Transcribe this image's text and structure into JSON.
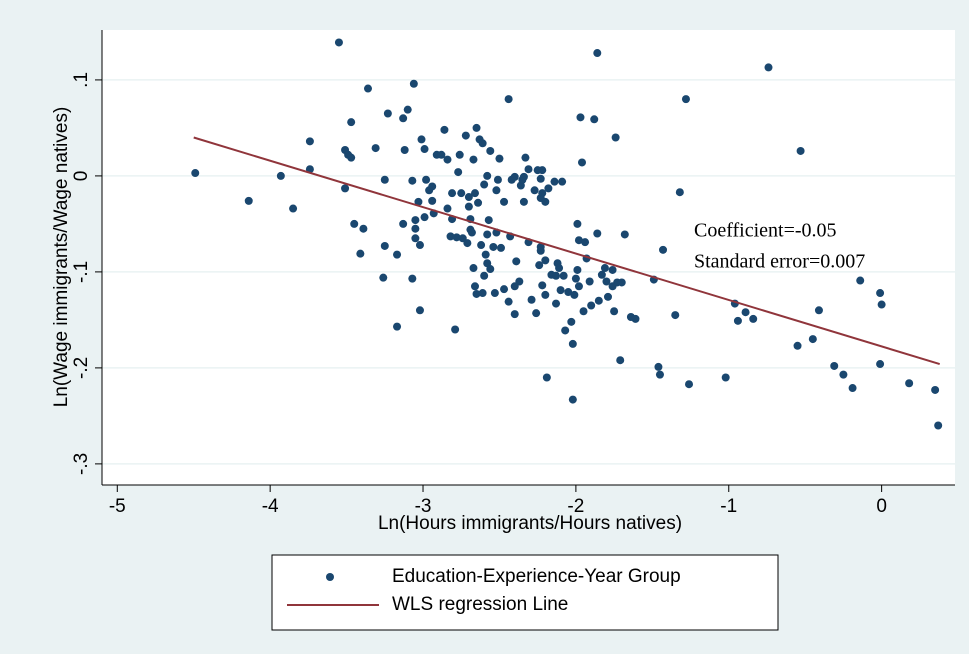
{
  "chart_data": {
    "type": "scatter",
    "xlabel": "Ln(Hours immigrants/Hours natives)",
    "ylabel": "Ln(Wage immigrants/Wage natives)",
    "xlim": [
      -5.1,
      0.48
    ],
    "ylim": [
      -0.322,
      0.152
    ],
    "xticks": [
      -5,
      -4,
      -3,
      -2,
      -1,
      0
    ],
    "yticks": [
      {
        "value": 0.1,
        "label": ".1"
      },
      0,
      {
        "value": -0.1,
        "label": "-.1"
      },
      {
        "value": -0.2,
        "label": "-.2"
      },
      {
        "value": -0.3,
        "label": "-.3"
      }
    ],
    "grid": true,
    "annotations": [
      "Coefficient=-0.05",
      "Standard error=0.007"
    ],
    "series": [
      {
        "name": "Education-Experience-Year Group",
        "style": "markers",
        "color": "#1a476f",
        "x": [
          -4.49,
          -4.14,
          -3.93,
          -3.85,
          -3.74,
          -3.74,
          -3.55,
          -3.51,
          -3.49,
          -3.47,
          -3.47,
          -3.51,
          -3.45,
          -3.41,
          -3.39,
          -3.36,
          -3.31,
          -3.26,
          -3.25,
          -3.25,
          -3.23,
          -3.17,
          -3.17,
          -3.13,
          -3.12,
          -3.13,
          -3.1,
          -3.07,
          -3.07,
          -3.06,
          -3.05,
          -3.05,
          -3.05,
          -3.03,
          -3.02,
          -3.02,
          -3.01,
          -2.99,
          -2.99,
          -2.98,
          -2.96,
          -2.94,
          -2.94,
          -2.93,
          -2.91,
          -2.88,
          -2.86,
          -2.84,
          -2.84,
          -2.82,
          -2.81,
          -2.81,
          -2.79,
          -2.78,
          -2.77,
          -2.76,
          -2.75,
          -2.74,
          -2.72,
          -2.71,
          -2.7,
          -2.7,
          -2.69,
          -2.69,
          -2.68,
          -2.67,
          -2.67,
          -2.66,
          -2.66,
          -2.65,
          -2.65,
          -2.64,
          -2.63,
          -2.62,
          -2.61,
          -2.61,
          -2.6,
          -2.6,
          -2.59,
          -2.58,
          -2.58,
          -2.58,
          -2.57,
          -2.56,
          -2.56,
          -2.54,
          -2.53,
          -2.52,
          -2.52,
          -2.51,
          -2.5,
          -2.49,
          -2.47,
          -2.47,
          -2.44,
          -2.44,
          -2.43,
          -2.42,
          -2.4,
          -2.4,
          -2.4,
          -2.39,
          -2.37,
          -2.36,
          -2.35,
          -2.34,
          -2.34,
          -2.33,
          -2.31,
          -2.31,
          -2.29,
          -2.27,
          -2.26,
          -2.25,
          -2.24,
          -2.23,
          -2.23,
          -2.23,
          -2.23,
          -2.22,
          -2.22,
          -2.22,
          -2.2,
          -2.2,
          -2.2,
          -2.19,
          -2.18,
          -2.16,
          -2.14,
          -2.13,
          -2.13,
          -2.12,
          -2.11,
          -2.1,
          -2.09,
          -2.08,
          -2.07,
          -2.05,
          -2.03,
          -2.02,
          -2.02,
          -2.01,
          -2.0,
          -1.99,
          -1.99,
          -1.98,
          -1.98,
          -1.97,
          -1.96,
          -1.95,
          -1.94,
          -1.93,
          -1.91,
          -1.9,
          -1.88,
          -1.86,
          -1.86,
          -1.85,
          -1.83,
          -1.81,
          -1.8,
          -1.79,
          -1.76,
          -1.76,
          -1.75,
          -1.74,
          -1.73,
          -1.71,
          -1.7,
          -1.68,
          -1.64,
          -1.61,
          -1.49,
          -1.46,
          -1.45,
          -1.43,
          -1.35,
          -1.32,
          -1.28,
          -1.26,
          -1.02,
          -0.96,
          -0.94,
          -0.89,
          -0.84,
          -0.74,
          -0.55,
          -0.53,
          -0.45,
          -0.41,
          -0.31,
          -0.25,
          -0.19,
          -0.14,
          -0.01,
          0.0,
          -0.01,
          0.18,
          0.35,
          0.37
        ],
        "values": [
          0.003,
          -0.026,
          0.0,
          -0.034,
          0.036,
          0.007,
          0.139,
          0.027,
          0.022,
          0.056,
          0.019,
          -0.013,
          -0.05,
          -0.081,
          -0.055,
          0.091,
          0.029,
          -0.106,
          -0.004,
          -0.073,
          0.065,
          -0.082,
          -0.157,
          0.06,
          0.027,
          -0.05,
          0.069,
          -0.005,
          -0.107,
          0.096,
          -0.046,
          -0.065,
          -0.055,
          -0.027,
          -0.14,
          -0.072,
          0.038,
          0.028,
          -0.043,
          -0.004,
          -0.015,
          -0.011,
          -0.026,
          -0.039,
          0.022,
          0.022,
          0.048,
          0.017,
          -0.034,
          -0.063,
          -0.018,
          -0.045,
          -0.16,
          -0.064,
          0.004,
          0.022,
          -0.018,
          -0.065,
          0.042,
          -0.07,
          -0.022,
          -0.032,
          -0.045,
          -0.056,
          -0.059,
          0.017,
          -0.096,
          -0.115,
          -0.018,
          -0.123,
          0.05,
          -0.028,
          0.038,
          -0.072,
          0.034,
          -0.122,
          -0.104,
          -0.009,
          -0.082,
          0.0,
          -0.091,
          -0.061,
          -0.046,
          0.026,
          -0.097,
          -0.074,
          -0.122,
          -0.015,
          -0.059,
          -0.004,
          0.018,
          -0.075,
          -0.118,
          -0.027,
          -0.131,
          0.08,
          -0.063,
          -0.004,
          -0.001,
          -0.115,
          -0.144,
          -0.089,
          -0.11,
          -0.01,
          -0.004,
          -0.027,
          -0.001,
          0.019,
          0.007,
          -0.069,
          -0.129,
          -0.015,
          -0.143,
          0.006,
          -0.093,
          -0.023,
          -0.074,
          -0.003,
          -0.078,
          -0.114,
          0.006,
          -0.018,
          -0.027,
          -0.124,
          -0.088,
          -0.21,
          -0.013,
          -0.103,
          -0.006,
          -0.104,
          -0.133,
          -0.091,
          -0.096,
          -0.119,
          -0.006,
          -0.104,
          -0.161,
          -0.121,
          -0.152,
          -0.233,
          -0.175,
          -0.124,
          -0.107,
          -0.098,
          -0.05,
          -0.115,
          -0.067,
          0.061,
          0.014,
          -0.141,
          -0.069,
          -0.086,
          -0.11,
          -0.135,
          0.059,
          0.128,
          -0.06,
          -0.13,
          -0.103,
          -0.096,
          -0.11,
          -0.126,
          -0.098,
          -0.115,
          -0.141,
          0.04,
          -0.111,
          -0.192,
          -0.111,
          -0.061,
          -0.147,
          -0.149,
          -0.108,
          -0.199,
          -0.207,
          -0.077,
          -0.145,
          -0.017,
          0.08,
          -0.217,
          -0.21,
          -0.133,
          -0.151,
          -0.142,
          -0.149,
          0.113,
          -0.177,
          0.026,
          -0.17,
          -0.14,
          -0.198,
          -0.207,
          -0.221,
          -0.109,
          -0.122,
          -0.134,
          -0.196,
          -0.216,
          -0.223,
          -0.26
        ]
      },
      {
        "name": "WLS regression Line",
        "style": "line",
        "color": "#90353b",
        "x": [
          -4.5,
          0.38
        ],
        "values": [
          0.04,
          -0.196
        ]
      }
    ]
  }
}
